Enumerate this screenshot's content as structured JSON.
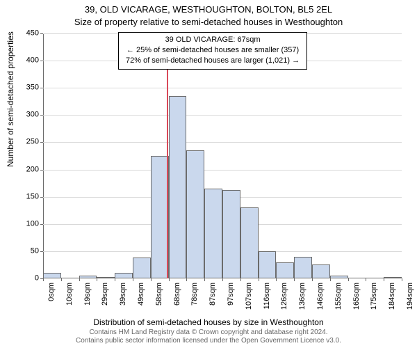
{
  "titles": {
    "line1": "39, OLD VICARAGE, WESTHOUGHTON, BOLTON, BL5 2EL",
    "line2": "Size of property relative to semi-detached houses in Westhoughton"
  },
  "annotation": {
    "line1": "39 OLD VICARAGE: 67sqm",
    "line2": "← 25% of semi-detached houses are smaller (357)",
    "line3": "72% of semi-detached houses are larger (1,021) →"
  },
  "axes": {
    "ylabel": "Number of semi-detached properties",
    "xlabel": "Distribution of semi-detached houses by size in Westhoughton",
    "ylim": [
      0,
      450
    ],
    "ytick_step": 50,
    "yticks": [
      0,
      50,
      100,
      150,
      200,
      250,
      300,
      350,
      400,
      450
    ],
    "xticks": [
      "0sqm",
      "10sqm",
      "19sqm",
      "29sqm",
      "39sqm",
      "49sqm",
      "58sqm",
      "68sqm",
      "78sqm",
      "87sqm",
      "97sqm",
      "107sqm",
      "116sqm",
      "126sqm",
      "136sqm",
      "146sqm",
      "155sqm",
      "165sqm",
      "175sqm",
      "184sqm",
      "194sqm"
    ]
  },
  "chart": {
    "type": "histogram",
    "bar_count": 20,
    "values": [
      10,
      0,
      5,
      3,
      10,
      38,
      225,
      335,
      235,
      165,
      163,
      130,
      50,
      30,
      40,
      25,
      5,
      0,
      0,
      3
    ],
    "bar_fill": "#cad8ed",
    "bar_border": "#6b6b6b",
    "background_color": "#ffffff",
    "grid_color": "#d9d9d9",
    "axis_color": "#6b6b6b",
    "reference_line": {
      "value_sqm": 67,
      "color": "#d94a5a",
      "bin_index": 6,
      "fraction_in_bin": 0.92
    }
  },
  "footer": {
    "line1": "Contains HM Land Registry data © Crown copyright and database right 2024.",
    "line2": "Contains public sector information licensed under the Open Government Licence v3.0."
  }
}
